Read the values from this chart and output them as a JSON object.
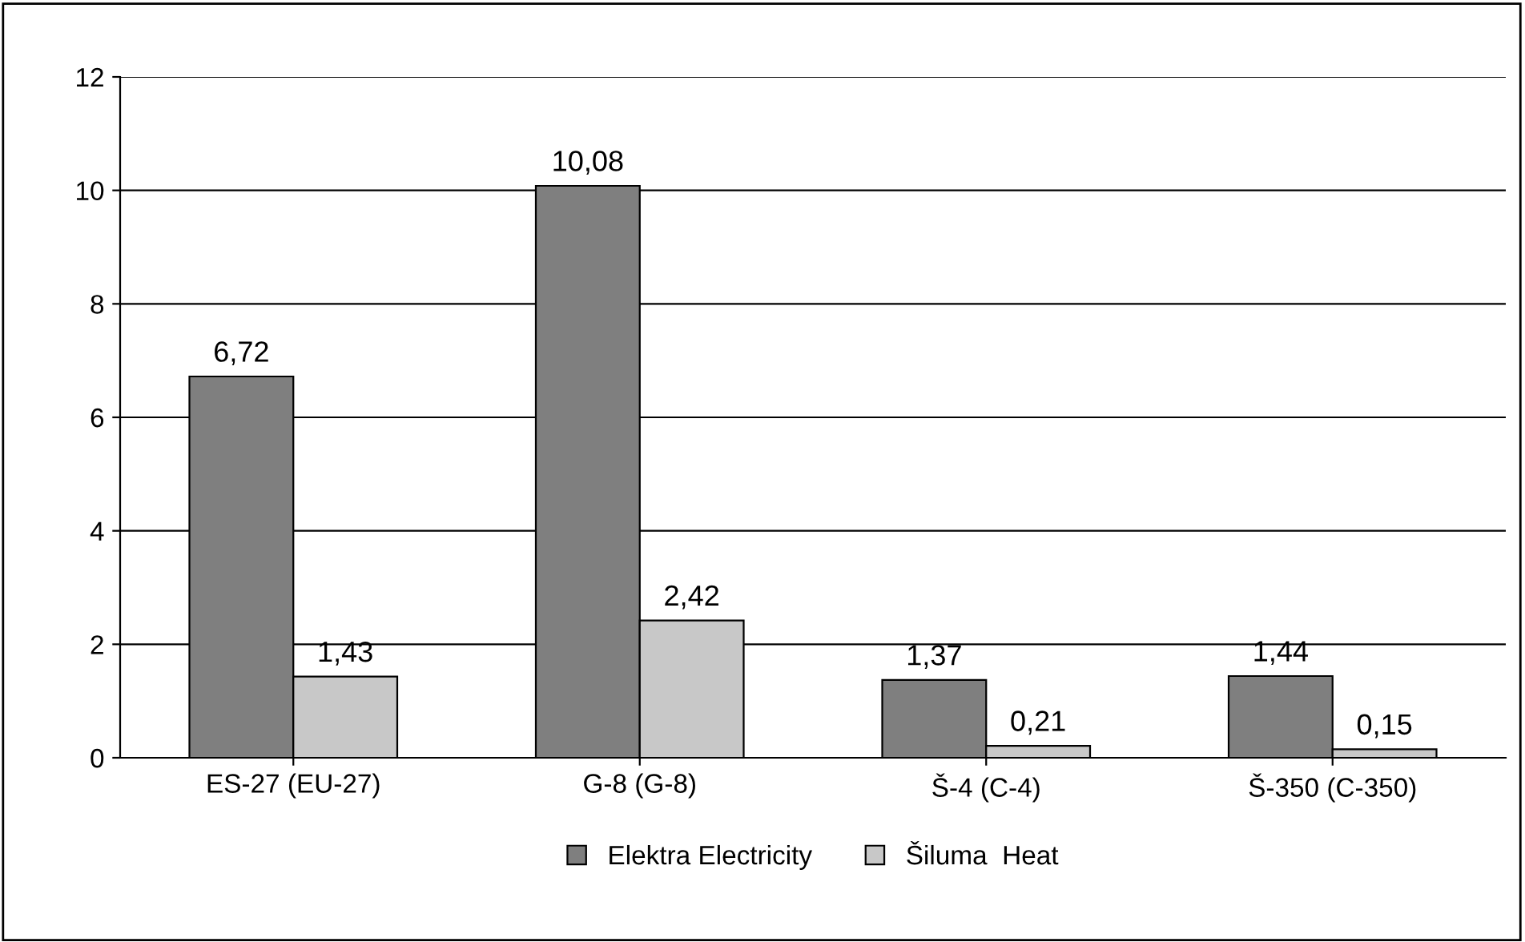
{
  "chart_data": {
    "type": "bar",
    "categories": [
      "ES-27 (EU-27)",
      "G-8 (G-8)",
      "Š-4 (C-4)",
      "Š-350 (C-350)"
    ],
    "series": [
      {
        "name": "Elektra Electricity",
        "color": "#7f7f7f",
        "values": [
          6.72,
          10.08,
          1.37,
          1.44
        ],
        "value_labels": [
          "6,72",
          "10,08",
          "1,37",
          "1,44"
        ]
      },
      {
        "name": "Šiluma  Heat",
        "color": "#c8c8c8",
        "values": [
          1.43,
          2.42,
          0.21,
          0.15
        ],
        "value_labels": [
          "1,43",
          "2,42",
          "0,21",
          "0,15"
        ]
      }
    ],
    "ylim": [
      0,
      12
    ],
    "yticks": [
      0,
      2,
      4,
      6,
      8,
      10,
      12
    ],
    "grid": "y",
    "legend": "bottom"
  }
}
